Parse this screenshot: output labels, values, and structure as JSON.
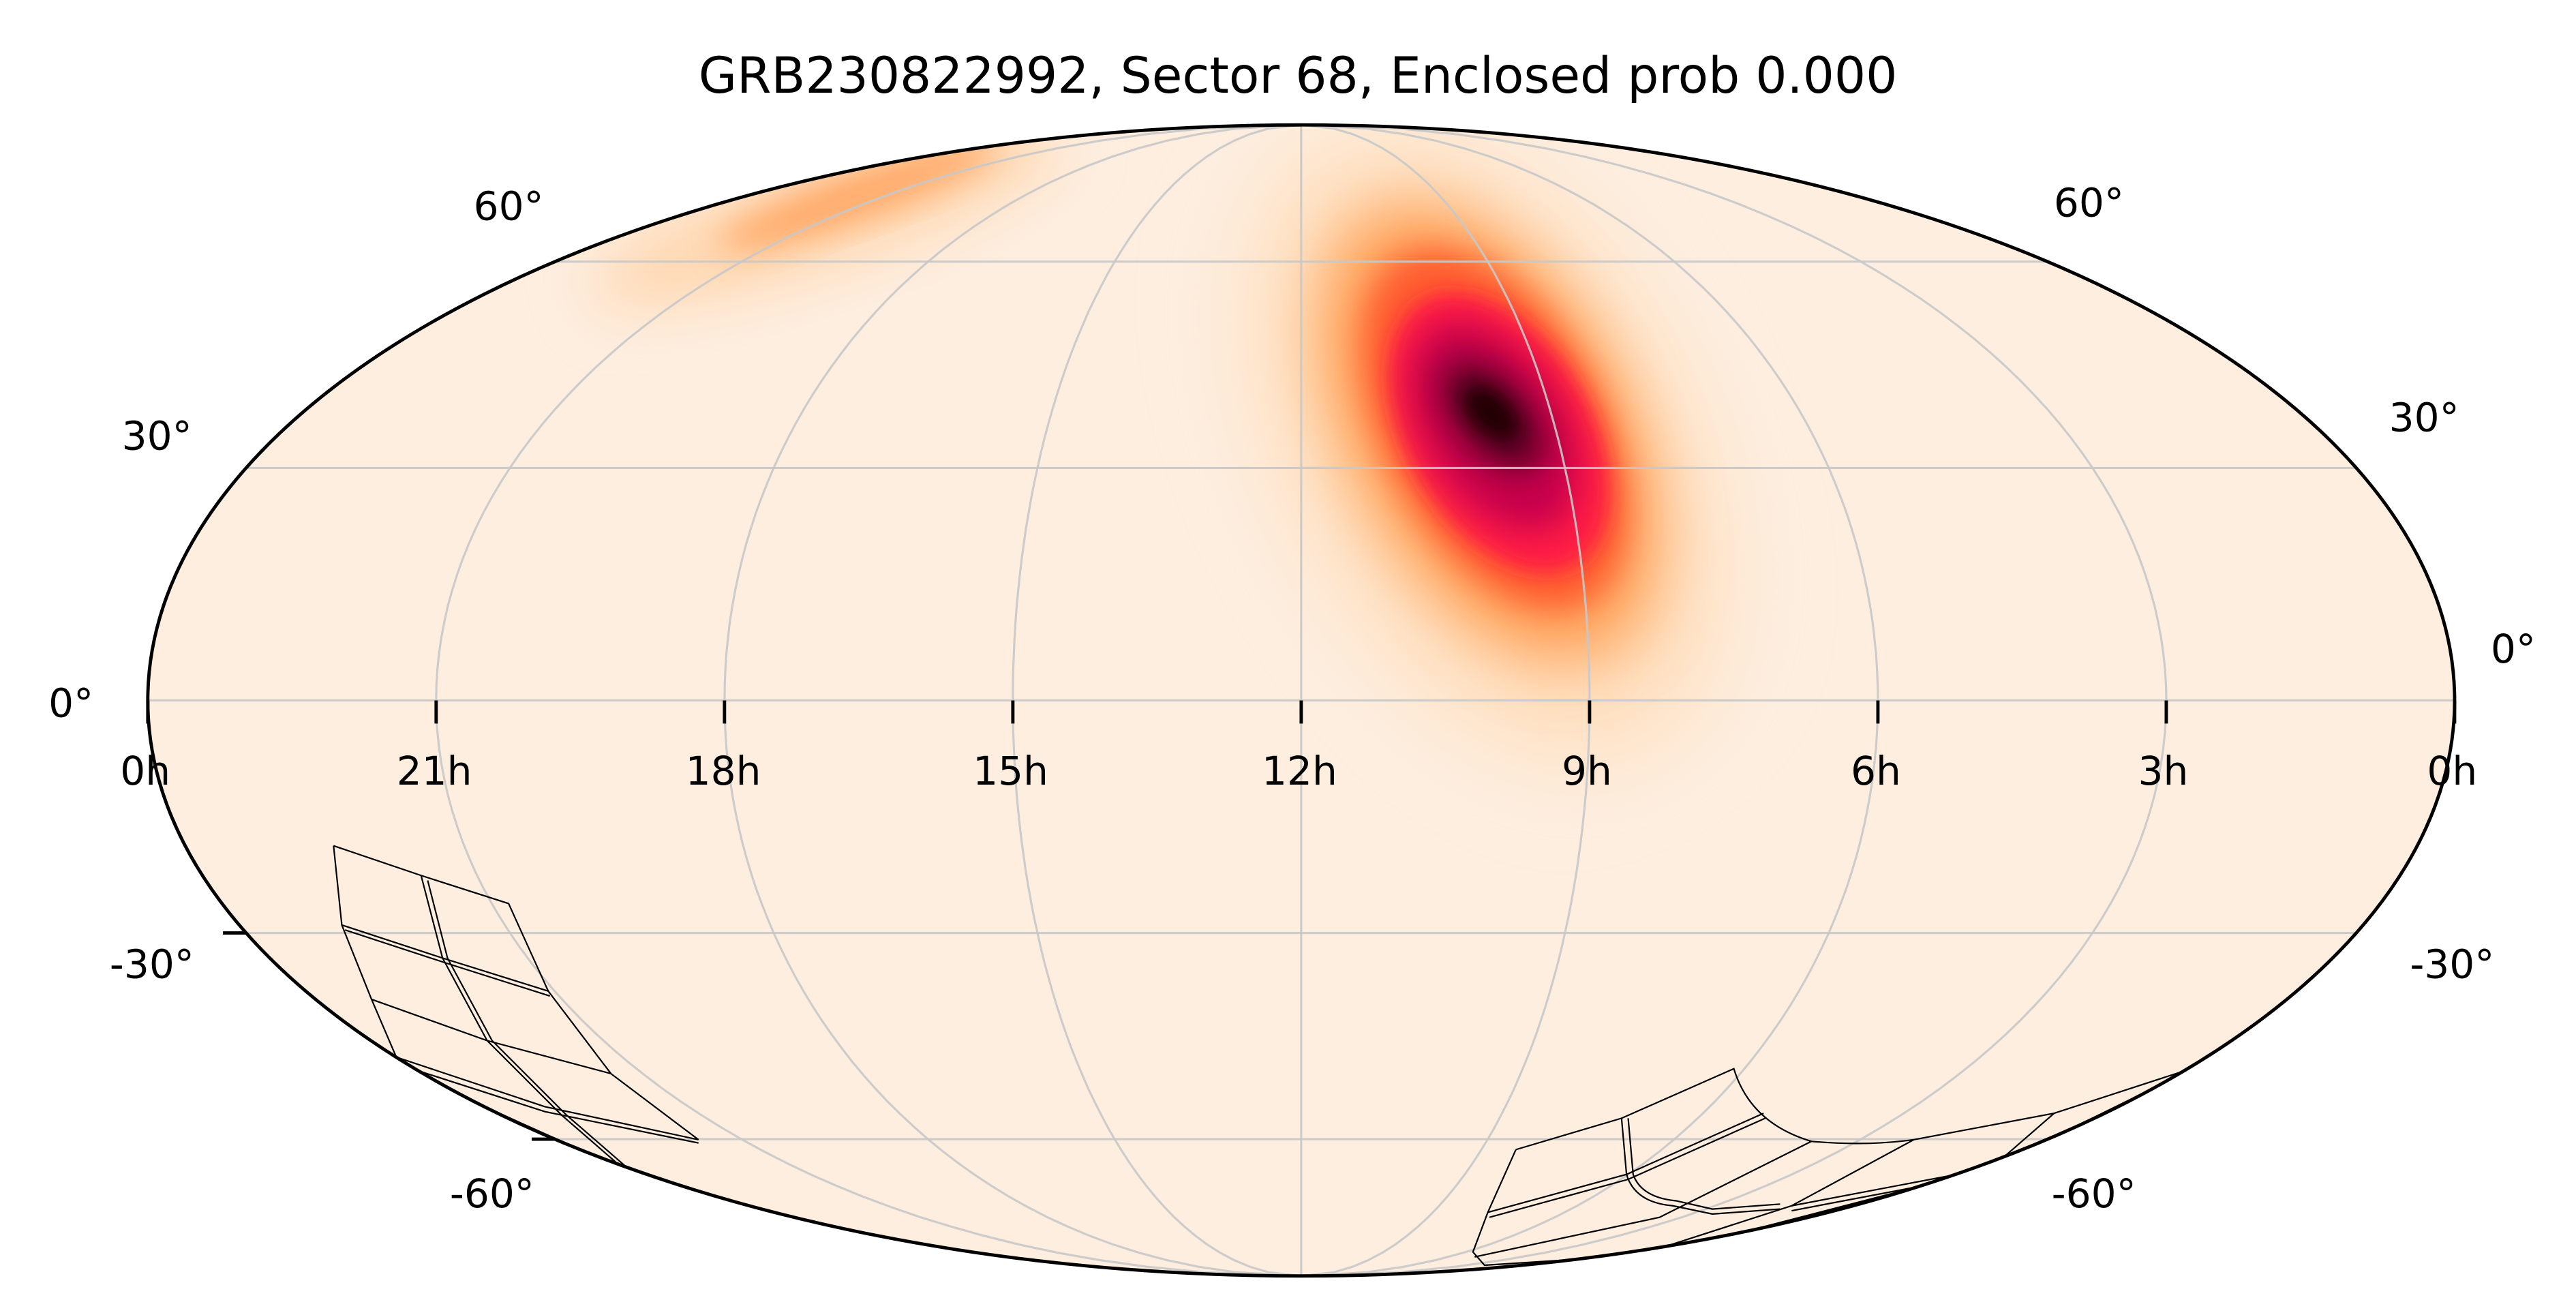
{
  "chart_data": {
    "type": "heatmap",
    "projection": "mollweide",
    "title": "GRB230822992, Sector 68, Enclosed prob 0.000",
    "ra_tick_labels": [
      "0h",
      "21h",
      "18h",
      "15h",
      "12h",
      "9h",
      "6h",
      "3h",
      "0h"
    ],
    "ra_ticks_hours": [
      24,
      21,
      18,
      15,
      12,
      9,
      6,
      3,
      0
    ],
    "dec_ticks_deg": [
      60,
      30,
      0,
      -30,
      -60
    ],
    "dec_tick_labels_left": [
      "60°",
      "30°",
      "0°",
      "-30°",
      "-60°"
    ],
    "dec_tick_labels_right": [
      "60°",
      "30°",
      "0°",
      "-30°",
      "-60°"
    ],
    "grid": true,
    "probability_peak": {
      "ra_hours": 9.7,
      "dec_deg": 36
    },
    "secondary_lobe": {
      "ra_hours": 19.5,
      "dec_deg": 62
    },
    "overlay": "TESS Sector 68 camera/CCD footprints (southern sky)",
    "enclosed_probability": 0.0,
    "colormap": [
      "#fdeee0",
      "#ffd6ad",
      "#ff8c3a",
      "#ff1a45",
      "#b0004e",
      "#2a0008"
    ]
  }
}
